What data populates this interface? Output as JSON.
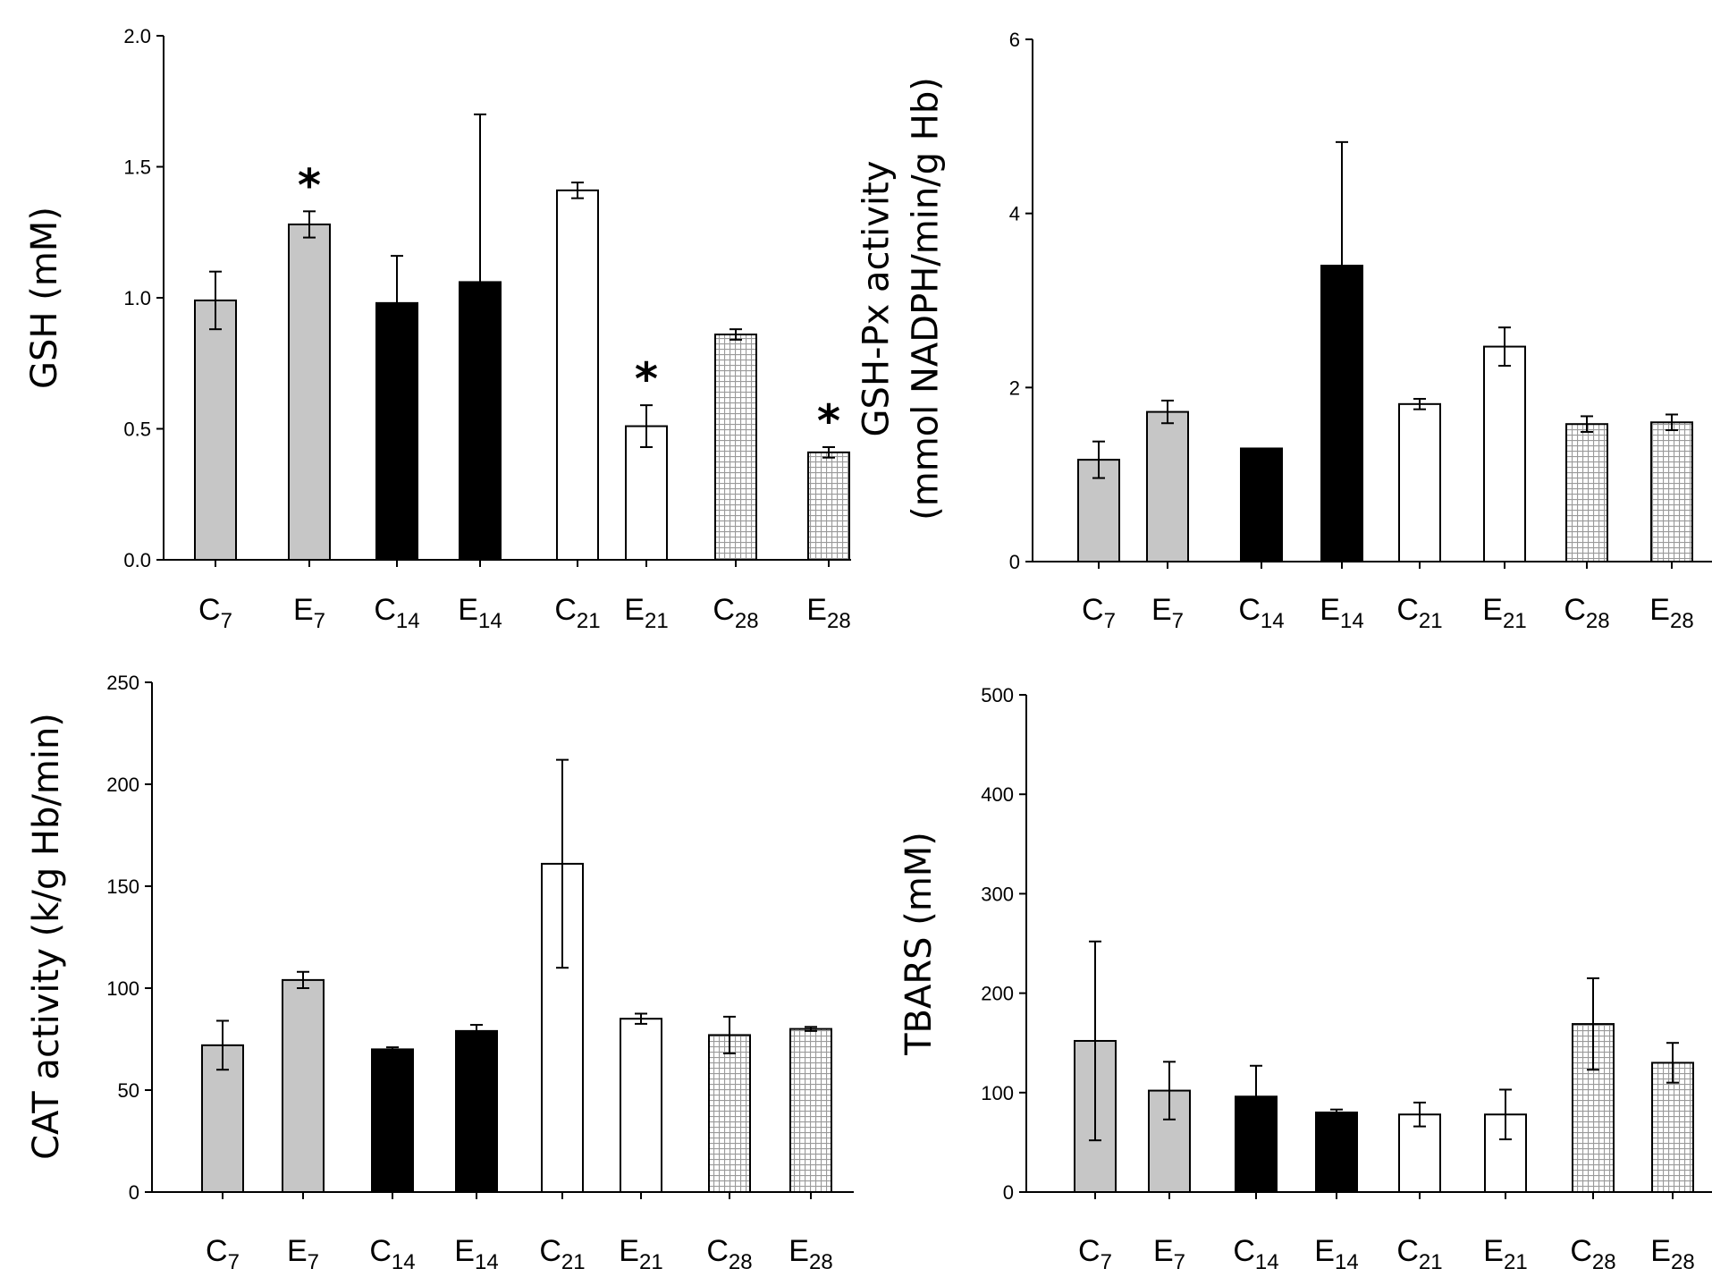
{
  "chart_data": [
    {
      "type": "bar",
      "panel": "top-left",
      "ylabel": "GSH (mM)",
      "ylabel_lines": [
        "GSH (mM)"
      ],
      "ylim": [
        0,
        2.0
      ],
      "yticks": [
        0.0,
        0.5,
        1.0,
        1.5,
        2.0
      ],
      "ytick_labels": [
        "0.0",
        "0.5",
        "1.0",
        "1.5",
        "2.0"
      ],
      "categories": [
        {
          "main": "C",
          "sub": "7"
        },
        {
          "main": "E",
          "sub": "7"
        },
        {
          "main": "C",
          "sub": "14"
        },
        {
          "main": "E",
          "sub": "14"
        },
        {
          "main": "C",
          "sub": "21"
        },
        {
          "main": "E",
          "sub": "21"
        },
        {
          "main": "C",
          "sub": "28"
        },
        {
          "main": "E",
          "sub": "28"
        }
      ],
      "values": [
        0.99,
        1.28,
        0.98,
        1.06,
        1.41,
        0.51,
        0.86,
        0.41
      ],
      "errors": [
        0.11,
        0.05,
        0.18,
        0.64,
        0.03,
        0.08,
        0.02,
        0.02
      ],
      "significance": [
        "",
        "*",
        "",
        "",
        "",
        "*",
        "",
        "*"
      ]
    },
    {
      "type": "bar",
      "panel": "top-right",
      "ylabel": "GSH-Px activity (mmol NADPH/min/g Hb)",
      "ylabel_lines": [
        "GSH-Px activity",
        "(mmol NADPH/min/g Hb)"
      ],
      "ylim": [
        0,
        6
      ],
      "yticks": [
        0,
        2,
        4,
        6
      ],
      "ytick_labels": [
        "0",
        "2",
        "4",
        "6"
      ],
      "categories": [
        {
          "main": "C",
          "sub": "7"
        },
        {
          "main": "E",
          "sub": "7"
        },
        {
          "main": "C",
          "sub": "14"
        },
        {
          "main": "E",
          "sub": "14"
        },
        {
          "main": "C",
          "sub": "21"
        },
        {
          "main": "E",
          "sub": "21"
        },
        {
          "main": "C",
          "sub": "28"
        },
        {
          "main": "E",
          "sub": "28"
        }
      ],
      "values": [
        1.17,
        1.72,
        1.3,
        3.4,
        1.81,
        2.47,
        1.58,
        1.6
      ],
      "errors": [
        0.21,
        0.13,
        0,
        1.42,
        0.06,
        0.22,
        0.09,
        0.09
      ],
      "significance": [
        "",
        "",
        "",
        "",
        "",
        "",
        "",
        ""
      ]
    },
    {
      "type": "bar",
      "panel": "bottom-left",
      "ylabel": "CAT activity (k/g Hb/min)",
      "ylabel_lines": [
        "CAT activity (k/g Hb/min)"
      ],
      "ylim": [
        0,
        250
      ],
      "yticks": [
        0,
        50,
        100,
        150,
        200,
        250
      ],
      "ytick_labels": [
        "0",
        "50",
        "100",
        "150",
        "200",
        "250"
      ],
      "categories": [
        {
          "main": "C",
          "sub": "7"
        },
        {
          "main": "E",
          "sub": "7"
        },
        {
          "main": "C",
          "sub": "14"
        },
        {
          "main": "E",
          "sub": "14"
        },
        {
          "main": "C",
          "sub": "21"
        },
        {
          "main": "E",
          "sub": "21"
        },
        {
          "main": "C",
          "sub": "28"
        },
        {
          "main": "E",
          "sub": "28"
        }
      ],
      "values": [
        72,
        104,
        70,
        79,
        161,
        85,
        77,
        80
      ],
      "errors": [
        12,
        4,
        1,
        3,
        51,
        2.5,
        9,
        1
      ],
      "significance": [
        "",
        "",
        "",
        "",
        "",
        "",
        "",
        ""
      ]
    },
    {
      "type": "bar",
      "panel": "bottom-right",
      "ylabel": "TBARS (mM)",
      "ylabel_lines": [
        "TBARS (mM)"
      ],
      "ylim": [
        0,
        500
      ],
      "yticks": [
        0,
        100,
        200,
        300,
        400,
        500
      ],
      "ytick_labels": [
        "0",
        "100",
        "200",
        "300",
        "400",
        "500"
      ],
      "categories": [
        {
          "main": "C",
          "sub": "7"
        },
        {
          "main": "E",
          "sub": "7"
        },
        {
          "main": "C",
          "sub": "14"
        },
        {
          "main": "E",
          "sub": "14"
        },
        {
          "main": "C",
          "sub": "21"
        },
        {
          "main": "E",
          "sub": "21"
        },
        {
          "main": "C",
          "sub": "28"
        },
        {
          "main": "E",
          "sub": "28"
        }
      ],
      "values": [
        152,
        102,
        96,
        80,
        78,
        78,
        169,
        130
      ],
      "errors": [
        100,
        29,
        31,
        3,
        12,
        25,
        46,
        20
      ],
      "significance": [
        "",
        "",
        "",
        "",
        "",
        "",
        "",
        ""
      ]
    }
  ],
  "styles": {
    "fills": [
      "#c6c6c6",
      "#c6c6c6",
      "#000000",
      "#000000",
      "#ffffff",
      "#ffffff",
      "hatch",
      "hatch"
    ],
    "stroke": "#000000",
    "hatch_color": "#9a9a9a"
  }
}
